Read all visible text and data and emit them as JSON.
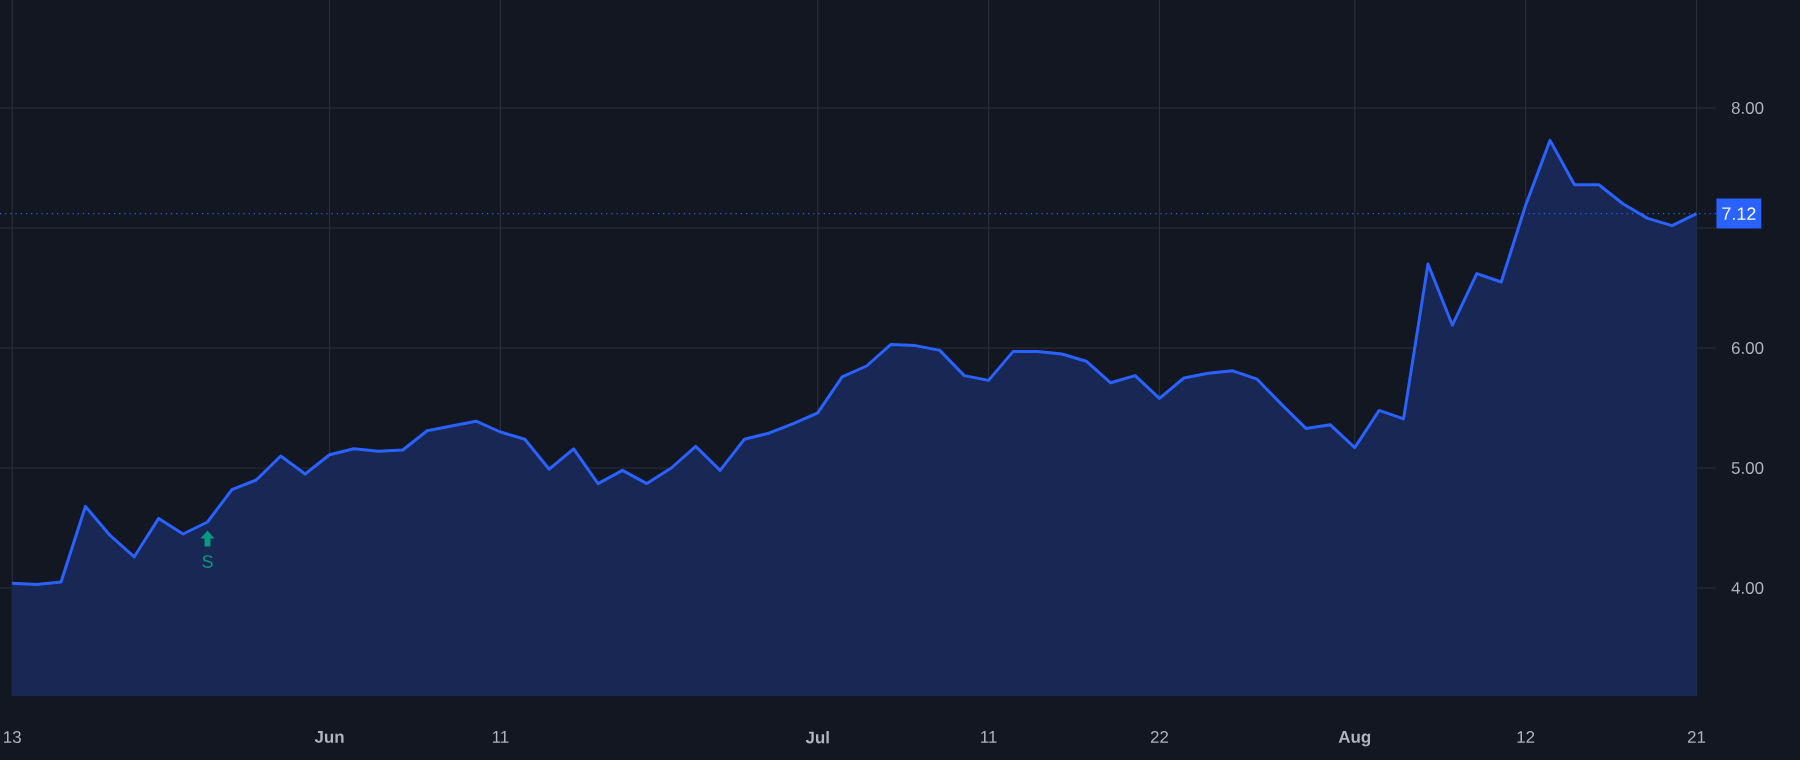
{
  "chart_data": {
    "type": "area",
    "categories": [
      "13",
      null,
      null,
      null,
      null,
      null,
      null,
      null,
      null,
      null,
      null,
      null,
      null,
      "Jun",
      null,
      null,
      null,
      null,
      null,
      null,
      "11",
      null,
      null,
      null,
      null,
      null,
      null,
      null,
      null,
      null,
      null,
      null,
      null,
      "Jul",
      null,
      null,
      null,
      null,
      null,
      null,
      "11",
      null,
      null,
      null,
      null,
      null,
      null,
      "22",
      null,
      null,
      null,
      null,
      null,
      null,
      null,
      "Aug",
      null,
      null,
      null,
      null,
      null,
      null,
      "12",
      null,
      null,
      null,
      null,
      null,
      null,
      "21"
    ],
    "series": [
      {
        "color": "#2962ff",
        "values": [
          4.04,
          4.03,
          4.05,
          4.68,
          4.44,
          4.26,
          4.58,
          4.45,
          4.55,
          4.82,
          4.9,
          5.1,
          4.95,
          5.11,
          5.16,
          5.14,
          5.15,
          5.31,
          5.35,
          5.39,
          5.3,
          5.24,
          4.99,
          5.16,
          4.87,
          4.98,
          4.87,
          5.0,
          5.18,
          4.98,
          5.24,
          5.29,
          5.37,
          5.46,
          5.76,
          5.85,
          6.03,
          6.02,
          5.98,
          5.77,
          5.73,
          5.97,
          5.97,
          5.95,
          5.89,
          5.71,
          5.77,
          5.58,
          5.75,
          5.79,
          5.81,
          5.74,
          5.53,
          5.33,
          5.36,
          5.17,
          5.48,
          5.41,
          6.7,
          6.19,
          6.62,
          6.55,
          7.19,
          7.73,
          7.36,
          7.36,
          7.2,
          7.08,
          7.02,
          7.12
        ]
      }
    ],
    "ylim": [
      3.1,
      8.9
    ],
    "yticks": [
      {
        "value": 4,
        "label": "4.00"
      },
      {
        "value": 5,
        "label": "5.00"
      },
      {
        "value": 6,
        "label": "6.00"
      },
      {
        "value": 7,
        "label": null
      },
      {
        "value": 8,
        "label": "8.00"
      }
    ],
    "grid": true,
    "marker": "none",
    "line_style": "solid",
    "ref_lines": [
      {
        "axis": "y",
        "value": 7.12,
        "label": "7.12",
        "color": "#2962ff",
        "line_style": "dotted"
      }
    ],
    "annotations": [
      {
        "text": "S",
        "y": 4.55
      }
    ]
  }
}
